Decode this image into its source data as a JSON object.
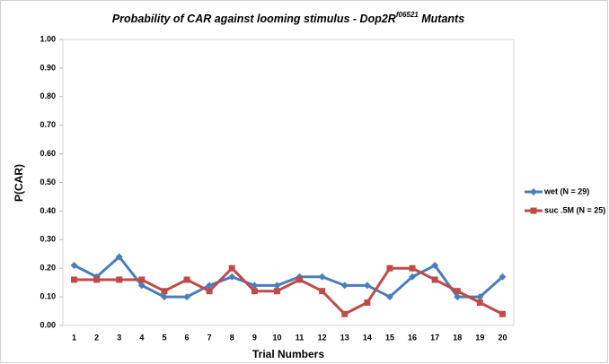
{
  "chart_data": {
    "type": "line",
    "title": "Probability of CAR against looming stimulus - Dop2R",
    "title_superscript": "f06521",
    "title_suffix": " Mutants",
    "x_label": "Trial Numbers",
    "y_label": "P(CAR)",
    "categories": [
      "1",
      "2",
      "3",
      "4",
      "5",
      "6",
      "7",
      "8",
      "9",
      "10",
      "11",
      "12",
      "13",
      "14",
      "15",
      "16",
      "17",
      "18",
      "19",
      "20"
    ],
    "series": [
      {
        "name": "wet (N = 29)",
        "color": "#4a7ebb",
        "marker": "diamond",
        "values": [
          0.21,
          0.17,
          0.24,
          0.14,
          0.1,
          0.1,
          0.14,
          0.17,
          0.14,
          0.14,
          0.17,
          0.17,
          0.14,
          0.14,
          0.1,
          0.17,
          0.21,
          0.1,
          0.1,
          0.17
        ]
      },
      {
        "name": "suc .5M (N = 25)",
        "color": "#be4b48",
        "marker": "square",
        "values": [
          0.16,
          0.16,
          0.16,
          0.16,
          0.12,
          0.16,
          0.12,
          0.2,
          0.12,
          0.12,
          0.16,
          0.12,
          0.04,
          0.08,
          0.2,
          0.2,
          0.16,
          0.12,
          0.08,
          0.04
        ]
      }
    ],
    "ylim": [
      0,
      1
    ],
    "yticks": [
      {
        "value": 0,
        "label": "0.00"
      },
      {
        "value": 0.1,
        "label": "0.10"
      },
      {
        "value": 0.2,
        "label": "0.20"
      },
      {
        "value": 0.3,
        "label": "0.30"
      },
      {
        "value": 0.4,
        "label": "0.40"
      },
      {
        "value": 0.5,
        "label": "0.50"
      },
      {
        "value": 0.6,
        "label": "0.60"
      },
      {
        "value": 0.7,
        "label": "0.70"
      },
      {
        "value": 0.8,
        "label": "0.80"
      },
      {
        "value": 0.9,
        "label": "0.90"
      },
      {
        "value": 1,
        "label": "1.00"
      }
    ],
    "grid": false,
    "legend": "right"
  }
}
